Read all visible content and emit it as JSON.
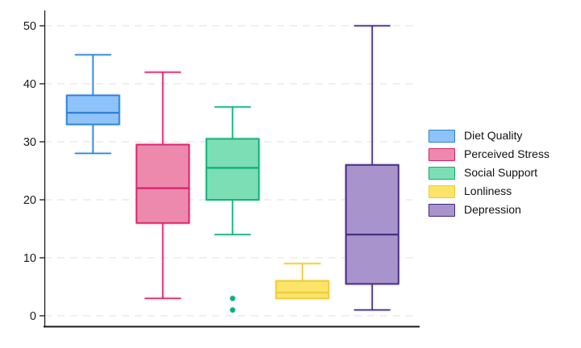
{
  "chart_data": {
    "type": "boxplot",
    "title": "",
    "xlabel": "",
    "ylabel": "",
    "ylim": [
      -2,
      52.5
    ],
    "yticks": [
      0,
      10,
      20,
      30,
      40,
      50
    ],
    "ytick_labels": [
      "0",
      "10",
      "20",
      "30",
      "40",
      "50"
    ],
    "grid": "horizontal dashed light-gray gridlines at each ytick",
    "legend_position": "outside right, vertically centered",
    "background_color": "#ffffff",
    "axis_color": "#1a1a1a",
    "gridline_color": "#e8e8e8",
    "series": [
      {
        "name": "Diet Quality",
        "fill": "#8DC3F8",
        "stroke": "#2E7FD6",
        "whisker_low": 28,
        "q1": 33,
        "median": 35,
        "q3": 38,
        "whisker_high": 45,
        "outliers": []
      },
      {
        "name": "Perceived Stress",
        "fill": "#EC89AC",
        "stroke": "#D6246C",
        "whisker_low": 3,
        "q1": 16,
        "median": 22,
        "q3": 29.5,
        "whisker_high": 42,
        "outliers": []
      },
      {
        "name": "Social Support",
        "fill": "#7BDEB4",
        "stroke": "#0EAE73",
        "whisker_low": 14,
        "q1": 20,
        "median": 25.5,
        "q3": 30.5,
        "whisker_high": 36,
        "outliers": [
          3,
          1
        ]
      },
      {
        "name": "Lonliness",
        "fill": "#FBE468",
        "stroke": "#EDCB3A",
        "whisker_low": 3,
        "q1": 3,
        "median": 4,
        "q3": 6,
        "whisker_high": 9,
        "outliers": []
      },
      {
        "name": "Depression",
        "fill": "#A893CC",
        "stroke": "#3F2A80",
        "whisker_low": 1,
        "q1": 5.5,
        "median": 14,
        "q3": 26,
        "whisker_high": 50,
        "outliers": []
      }
    ]
  }
}
